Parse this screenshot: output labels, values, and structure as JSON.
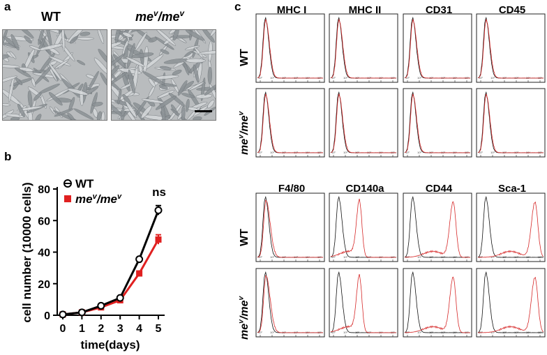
{
  "panels": {
    "a": {
      "letter": "a",
      "images": [
        {
          "label": "WT"
        },
        {
          "label_main": "me",
          "label_sup": "v",
          "label_sep": "/",
          "label_main2": "me",
          "label_sup2": "v"
        }
      ],
      "scale_bar": "scale-bar"
    },
    "b": {
      "letter": "b",
      "ylabel": "cell number  (10000 cells)",
      "xlabel": "time(days)",
      "annotation": "ns",
      "legend": [
        {
          "name": "WT",
          "color": "#000000",
          "marker": "open-circle"
        },
        {
          "name_main": "me",
          "name_sup": "v",
          "name_sep": "/",
          "name_main2": "me",
          "name_sup2": "v",
          "color": "#e02020",
          "marker": "filled-square"
        }
      ]
    },
    "c": {
      "letter": "c",
      "top_titles": [
        "MHC I",
        "MHC II",
        "CD31",
        "CD45"
      ],
      "bottom_titles": [
        "F4/80",
        "CD140a",
        "CD44",
        "Sca-1"
      ],
      "row_labels": [
        {
          "text": "WT"
        },
        {
          "main": "me",
          "sup": "v",
          "sep": "/",
          "main2": "me",
          "sup2": "v"
        },
        {
          "text": "WT"
        },
        {
          "main": "me",
          "sup": "v",
          "sep": "/",
          "main2": "me",
          "sup2": "v"
        }
      ],
      "x_tick_labels": [
        "10⁰",
        "10¹",
        "10²",
        "10³",
        "10⁴",
        "10⁵"
      ],
      "shift_levels": {
        "F4/80": 0.0,
        "CD140a": 0.32,
        "CD44": 0.62,
        "Sca-1": 0.75
      }
    }
  },
  "chart_data": {
    "type": "line",
    "x": [
      0,
      1,
      2,
      3,
      4,
      5
    ],
    "xlabel": "time(days)",
    "ylabel": "cell number  (10000 cells)",
    "ylim": [
      0,
      80
    ],
    "yticks": [
      0,
      20,
      40,
      60,
      80
    ],
    "xticks": [
      0,
      1,
      2,
      3,
      4,
      5
    ],
    "series": [
      {
        "name": "WT",
        "values": [
          0.5,
          1.8,
          6,
          11,
          35.5,
          66.5
        ],
        "errors": [
          0,
          0,
          0,
          0,
          1,
          3
        ]
      },
      {
        "name": "mev/mev",
        "values": [
          0.5,
          1.8,
          5,
          9.5,
          26.5,
          48
        ],
        "errors": [
          0,
          0,
          0,
          0.5,
          1,
          3
        ]
      }
    ],
    "annotations": [
      {
        "x": 5,
        "text": "ns"
      }
    ],
    "legend_position": "top-left",
    "grid": false
  }
}
